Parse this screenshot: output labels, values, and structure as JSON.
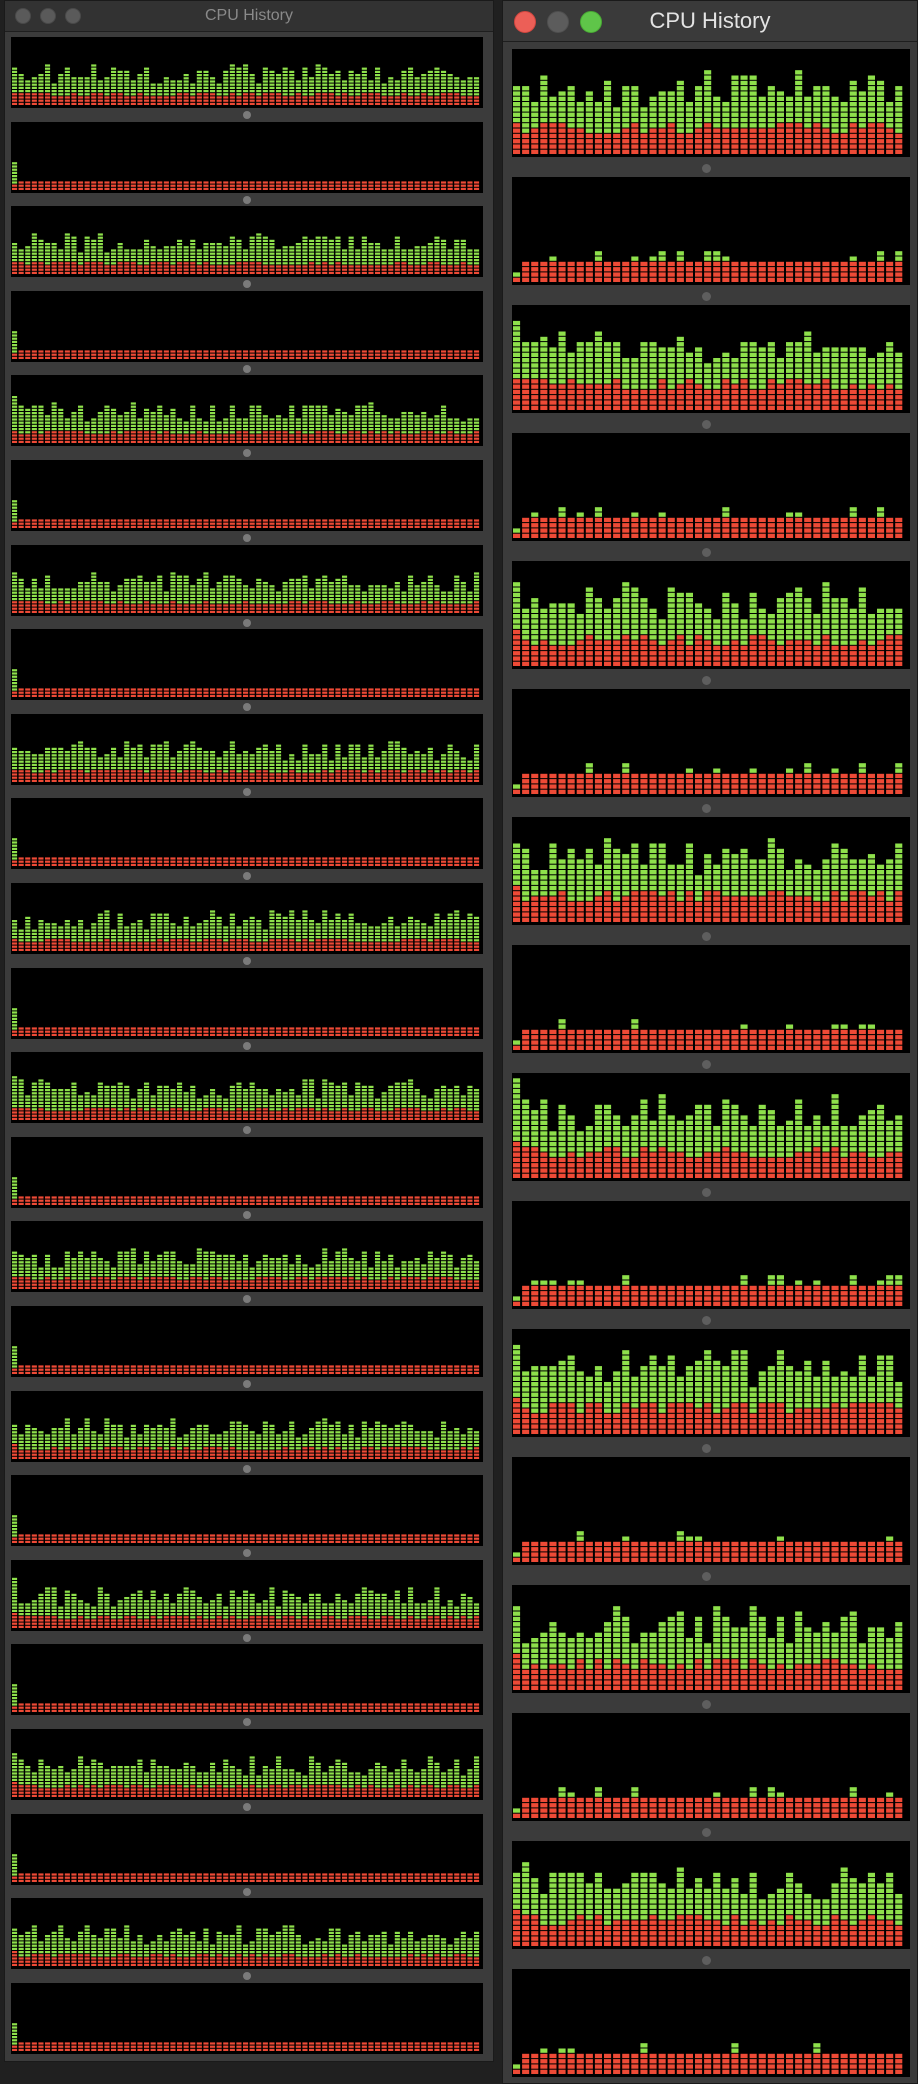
{
  "windows": [
    {
      "id": "left",
      "title": "CPU History",
      "active": false,
      "panel_count": 24
    },
    {
      "id": "right",
      "title": "CPU History",
      "active": true,
      "panel_count": 16
    }
  ],
  "colors": {
    "user_load": "#8ee04b",
    "system_load": "#ee4a36",
    "background": "#000000",
    "window_chrome": "#3b3b3b"
  }
}
